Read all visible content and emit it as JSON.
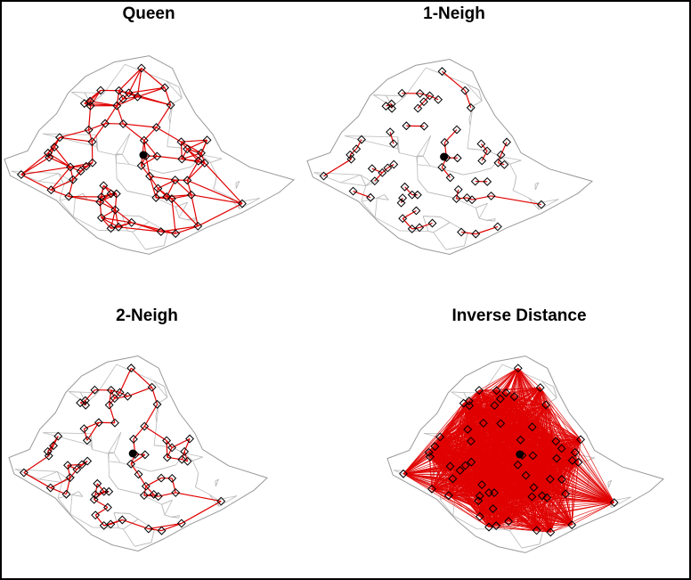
{
  "panels": [
    {
      "title": "Queen"
    },
    {
      "title": "1-Neigh"
    },
    {
      "title": "2-Neigh"
    },
    {
      "title": "Inverse Distance"
    }
  ]
}
